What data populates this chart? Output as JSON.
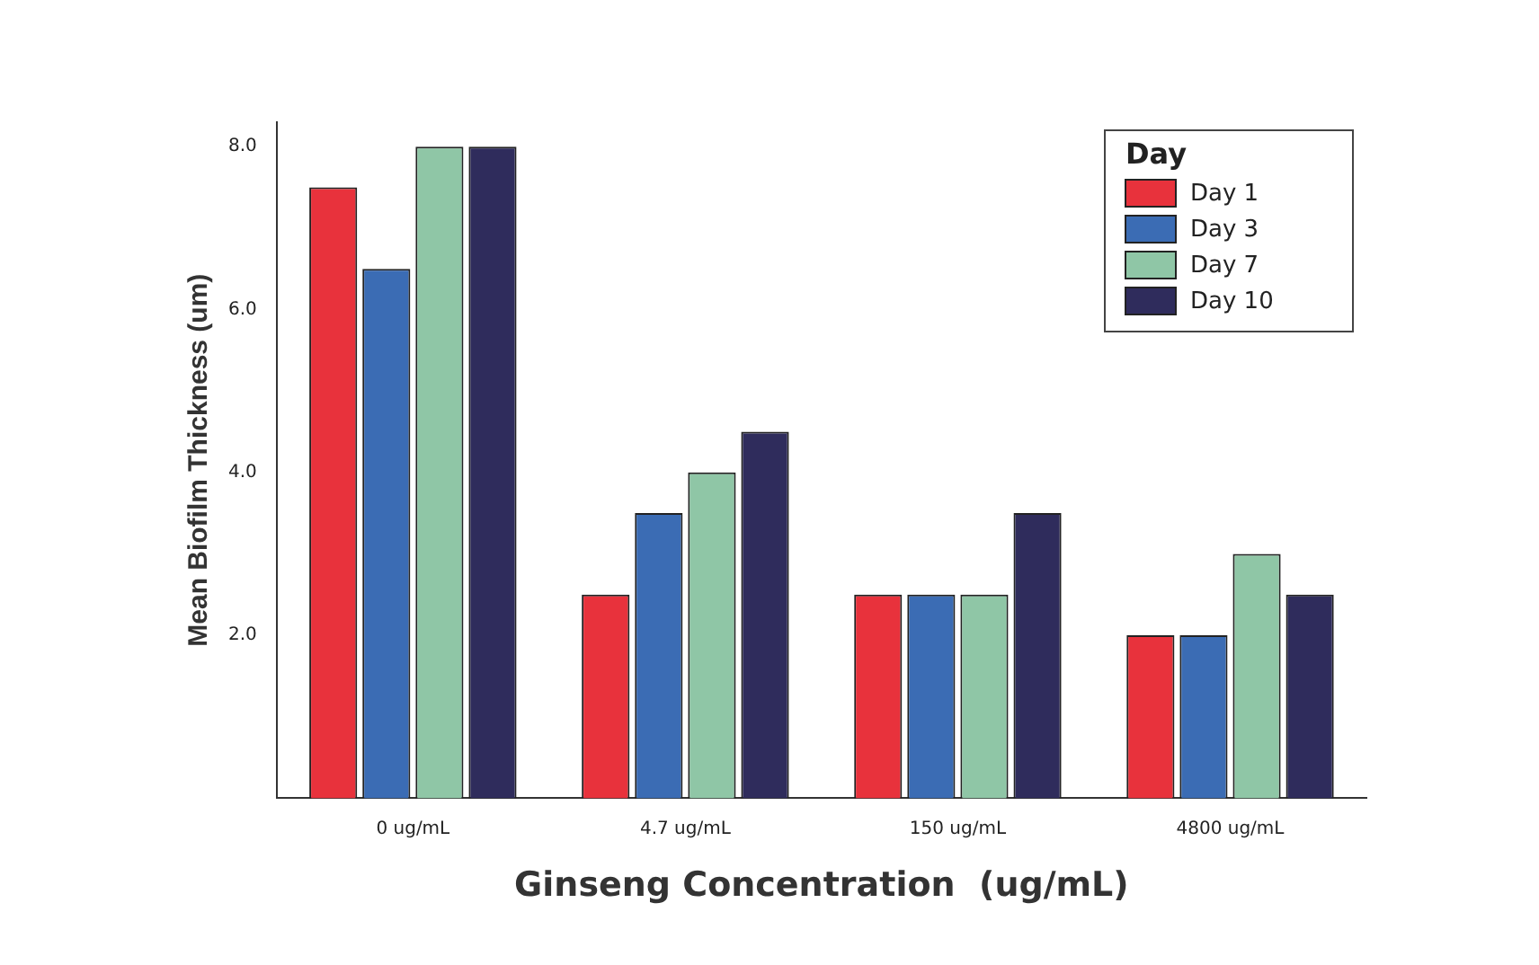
{
  "chart_data": {
    "type": "bar",
    "xlabel": "Ginseng Concentration  (ug/mL)",
    "ylabel": "Mean Biofilm Thickness (um)",
    "legend_title": "Day",
    "categories": [
      "0 ug/mL",
      "4.7 ug/mL",
      "150 ug/mL",
      "4800 ug/mL"
    ],
    "series": [
      {
        "name": "Day 1",
        "color": "#e8323c",
        "values": [
          7.5,
          2.5,
          2.5,
          2.0
        ]
      },
      {
        "name": "Day 3",
        "color": "#3b6cb4",
        "values": [
          6.5,
          3.5,
          2.5,
          2.0
        ]
      },
      {
        "name": "Day 7",
        "color": "#8fc6a6",
        "values": [
          8.0,
          4.0,
          2.5,
          3.0
        ]
      },
      {
        "name": "Day 10",
        "color": "#2f2c5c",
        "values": [
          8.0,
          4.5,
          3.5,
          2.5
        ]
      }
    ],
    "ylim": [
      0,
      8.3
    ],
    "yticks": [
      {
        "value": 2,
        "label": "2.0"
      },
      {
        "value": 4,
        "label": "4.0"
      },
      {
        "value": 6,
        "label": "6.0"
      },
      {
        "value": 8,
        "label": "8.0"
      }
    ],
    "grid": false,
    "legend": "top right"
  }
}
